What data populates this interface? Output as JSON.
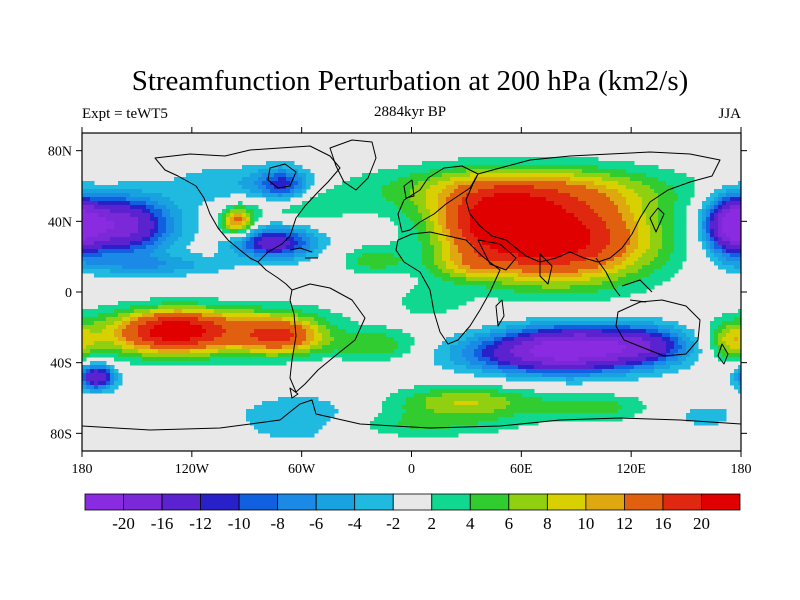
{
  "chart_data": {
    "type": "heatmap",
    "title": "Streamfunction Perturbation at 200 hPa (km2/s)",
    "left_label": "Expt = teWT5",
    "center_label": "2884kyr BP",
    "right_label": "JJA",
    "x_ticks": [
      "180",
      "120W",
      "60W",
      "0",
      "60E",
      "120E",
      "180"
    ],
    "x_tick_values": [
      -180,
      -120,
      -60,
      0,
      60,
      120,
      180
    ],
    "y_ticks": [
      "80N",
      "40N",
      "0",
      "40S",
      "80S"
    ],
    "y_tick_values": [
      80,
      40,
      0,
      -40,
      -80
    ],
    "xlim": [
      -180,
      180
    ],
    "ylim": [
      -90,
      90
    ],
    "colorbar": {
      "labels": [
        "-20",
        "-16",
        "-12",
        "-10",
        "-8",
        "-6",
        "-4",
        "-2",
        "2",
        "4",
        "6",
        "8",
        "10",
        "12",
        "16",
        "20"
      ],
      "levels": [
        -20,
        -16,
        -12,
        -10,
        -8,
        -6,
        -4,
        -2,
        2,
        4,
        6,
        8,
        10,
        12,
        16,
        20
      ],
      "colors": [
        "#8a2be2",
        "#7a28d8",
        "#5b22d0",
        "#2820c8",
        "#1060e0",
        "#1a8ae6",
        "#18a2e0",
        "#20bae0",
        "#e8e8e8",
        "#10d890",
        "#30cc30",
        "#90d010",
        "#d8d000",
        "#e0a810",
        "#e06010",
        "#e02810",
        "#e00000"
      ]
    },
    "field_features": [
      {
        "lon": 80,
        "lat": 30,
        "value": 22,
        "rx": 50,
        "ry": 24
      },
      {
        "lon": 45,
        "lat": 40,
        "value": 14,
        "rx": 30,
        "ry": 18
      },
      {
        "lon": 60,
        "lat": 58,
        "value": 9,
        "rx": 80,
        "ry": 14
      },
      {
        "lon": -130,
        "lat": -22,
        "value": 14,
        "rx": 25,
        "ry": 11
      },
      {
        "lon": -70,
        "lat": -25,
        "value": 13,
        "rx": 22,
        "ry": 10
      },
      {
        "lon": -150,
        "lat": -25,
        "value": 7,
        "rx": 40,
        "ry": 13
      },
      {
        "lon": -100,
        "lat": -25,
        "value": 7,
        "rx": 35,
        "ry": 12
      },
      {
        "lon": -95,
        "lat": 40,
        "value": 13,
        "rx": 9,
        "ry": 8
      },
      {
        "lon": -20,
        "lat": -30,
        "value": 6,
        "rx": 25,
        "ry": 9
      },
      {
        "lon": 30,
        "lat": -62,
        "value": 8,
        "rx": 40,
        "ry": 9
      },
      {
        "lon": 100,
        "lat": -65,
        "value": 5,
        "rx": 30,
        "ry": 8
      },
      {
        "lon": -20,
        "lat": 18,
        "value": 5,
        "rx": 18,
        "ry": 8
      },
      {
        "lon": 175,
        "lat": -28,
        "value": 7,
        "rx": 12,
        "ry": 10
      },
      {
        "lon": -65,
        "lat": 50,
        "value": 5,
        "rx": 30,
        "ry": 9
      },
      {
        "lon": 90,
        "lat": -32,
        "value": -20,
        "rx": 38,
        "ry": 13
      },
      {
        "lon": 55,
        "lat": -35,
        "value": -8,
        "rx": 40,
        "ry": 11
      },
      {
        "lon": 130,
        "lat": -30,
        "value": -10,
        "rx": 25,
        "ry": 11
      },
      {
        "lon": -160,
        "lat": 38,
        "value": -19,
        "rx": 28,
        "ry": 16
      },
      {
        "lon": 175,
        "lat": 38,
        "value": -18,
        "rx": 14,
        "ry": 16
      },
      {
        "lon": -75,
        "lat": 28,
        "value": -14,
        "rx": 22,
        "ry": 9
      },
      {
        "lon": -70,
        "lat": 60,
        "value": -11,
        "rx": 15,
        "ry": 10
      },
      {
        "lon": -100,
        "lat": 60,
        "value": -4,
        "rx": 35,
        "ry": 12
      },
      {
        "lon": -140,
        "lat": 15,
        "value": -5,
        "rx": 40,
        "ry": 6
      },
      {
        "lon": -172,
        "lat": -48,
        "value": -16,
        "rx": 10,
        "ry": 7
      },
      {
        "lon": -60,
        "lat": -72,
        "value": -5,
        "rx": 35,
        "ry": 13
      },
      {
        "lon": -100,
        "lat": -15,
        "value": 4,
        "rx": 60,
        "ry": 10
      },
      {
        "lon": 0,
        "lat": -75,
        "value": 4,
        "rx": 60,
        "ry": 8
      },
      {
        "lon": 160,
        "lat": -70,
        "value": -3,
        "rx": 20,
        "ry": 8
      },
      {
        "lon": 30,
        "lat": 15,
        "value": 5,
        "rx": 20,
        "ry": 8
      },
      {
        "lon": 10,
        "lat": -5,
        "value": 3,
        "rx": 20,
        "ry": 10
      }
    ]
  }
}
